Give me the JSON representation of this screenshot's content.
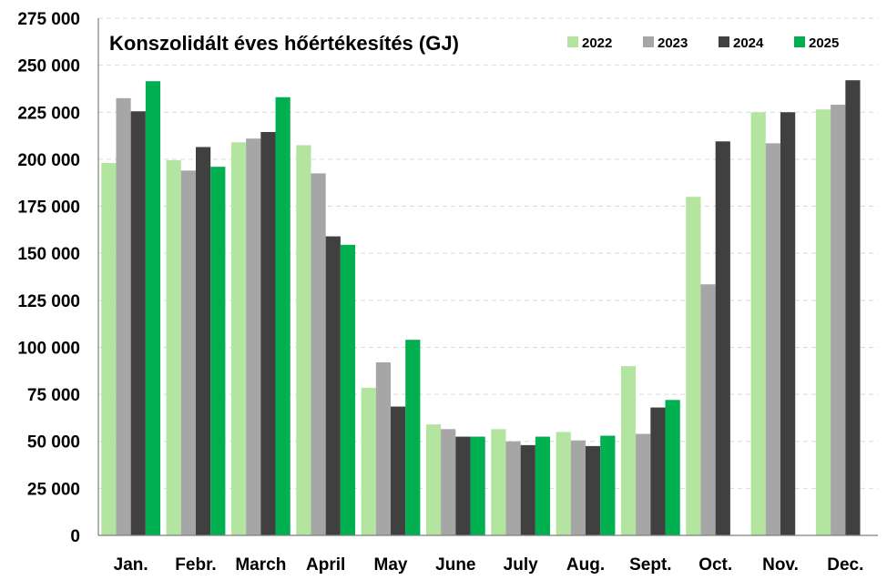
{
  "chart_data": {
    "type": "bar",
    "title": "Konszolidált éves hőértékesítés (GJ)",
    "xlabel": "",
    "ylabel": "",
    "ylim": [
      0,
      275000
    ],
    "ytick_step": 25000,
    "ytick_labels": [
      "0",
      "25 000",
      "50 000",
      "75 000",
      "100 000",
      "125 000",
      "150 000",
      "175 000",
      "200 000",
      "225 000",
      "250 000",
      "275 000"
    ],
    "grid": true,
    "legend_position": "top-right",
    "categories": [
      "Jan.",
      "Febr.",
      "March",
      "April",
      "May",
      "June",
      "July",
      "Aug.",
      "Sept.",
      "Oct.",
      "Nov.",
      "Dec."
    ],
    "series": [
      {
        "name": "2022",
        "color": "#b3e5a0",
        "values": [
          198000,
          199500,
          209000,
          207500,
          78500,
          59000,
          56500,
          55000,
          90000,
          180000,
          225000,
          226500
        ]
      },
      {
        "name": "2023",
        "color": "#a6a6a6",
        "values": [
          232500,
          194000,
          211000,
          192500,
          92000,
          56500,
          50000,
          50500,
          54000,
          133500,
          208500,
          229000
        ]
      },
      {
        "name": "2024",
        "color": "#404040",
        "values": [
          225500,
          206500,
          214500,
          159000,
          68500,
          52500,
          48000,
          47500,
          68000,
          209500,
          225000,
          242000
        ]
      },
      {
        "name": "2025",
        "color": "#00b050",
        "values": [
          241500,
          196000,
          233000,
          154500,
          104000,
          52500,
          52500,
          53000,
          72000,
          null,
          null,
          null
        ]
      }
    ]
  }
}
